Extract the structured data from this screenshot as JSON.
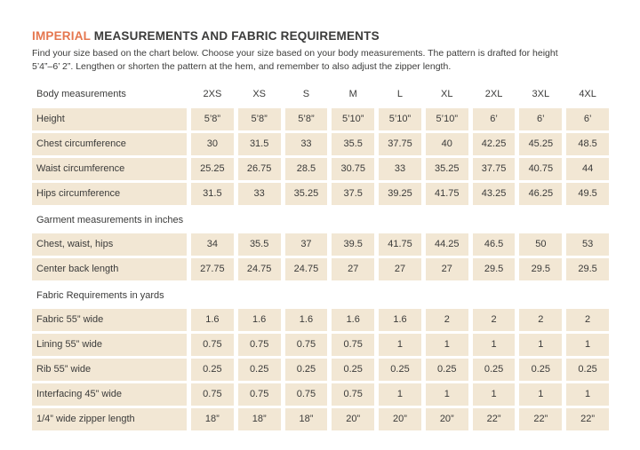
{
  "colors": {
    "accent_orange": "#e5764e",
    "body_text": "#3b3b3a",
    "cell_background": "#f2e7d4",
    "page_background": "#ffffff"
  },
  "page": {
    "title_highlight": "IMPERIAL",
    "title_rest": " MEASUREMENTS AND FABRIC REQUIREMENTS",
    "intro_line1": "Find your size based on the chart below. Choose your size based on your body measurements. The pattern is drafted for height",
    "intro_line2": "5’4”–6’ 2”. Lengthen or shorten the pattern at the hem, and remember to also adjust the zipper length."
  },
  "table": {
    "header": {
      "label": "Body measurements",
      "sizes": [
        "2XS",
        "XS",
        "S",
        "M",
        "L",
        "XL",
        "2XL",
        "3XL",
        "4XL"
      ]
    },
    "sections": [
      {
        "heading": null,
        "rows": [
          {
            "label": "Height",
            "values": [
              "5’8”",
              "5’8”",
              "5’8”",
              "5’10”",
              "5’10”",
              "5’10”",
              "6’",
              "6’",
              "6’"
            ]
          },
          {
            "label": "Chest circumference",
            "values": [
              "30",
              "31.5",
              "33",
              "35.5",
              "37.75",
              "40",
              "42.25",
              "45.25",
              "48.5"
            ]
          },
          {
            "label": "Waist circumference",
            "values": [
              "25.25",
              "26.75",
              "28.5",
              "30.75",
              "33",
              "35.25",
              "37.75",
              "40.75",
              "44"
            ]
          },
          {
            "label": "Hips circumference",
            "values": [
              "31.5",
              "33",
              "35.25",
              "37.5",
              "39.25",
              "41.75",
              "43.25",
              "46.25",
              "49.5"
            ]
          }
        ]
      },
      {
        "heading": "Garment measurements in inches",
        "rows": [
          {
            "label": "Chest, waist, hips",
            "values": [
              "34",
              "35.5",
              "37",
              "39.5",
              "41.75",
              "44.25",
              "46.5",
              "50",
              "53"
            ]
          },
          {
            "label": "Center back length",
            "values": [
              "27.75",
              "24.75",
              "24.75",
              "27",
              "27",
              "27",
              "29.5",
              "29.5",
              "29.5"
            ]
          }
        ]
      },
      {
        "heading": "Fabric Requirements in yards",
        "rows": [
          {
            "label": "Fabric 55” wide",
            "values": [
              "1.6",
              "1.6",
              "1.6",
              "1.6",
              "1.6",
              "2",
              "2",
              "2",
              "2"
            ]
          },
          {
            "label": "Lining 55” wide",
            "values": [
              "0.75",
              "0.75",
              "0.75",
              "0.75",
              "1",
              "1",
              "1",
              "1",
              "1"
            ]
          },
          {
            "label": "Rib 55” wide",
            "values": [
              "0.25",
              "0.25",
              "0.25",
              "0.25",
              "0.25",
              "0.25",
              "0.25",
              "0.25",
              "0.25"
            ]
          },
          {
            "label": "Interfacing 45” wide",
            "values": [
              "0.75",
              "0.75",
              "0.75",
              "0.75",
              "1",
              "1",
              "1",
              "1",
              "1"
            ]
          },
          {
            "label": "1/4” wide zipper length",
            "values": [
              "18”",
              "18”",
              "18”",
              "20”",
              "20”",
              "20”",
              "22”",
              "22”",
              "22”"
            ]
          }
        ]
      }
    ]
  }
}
